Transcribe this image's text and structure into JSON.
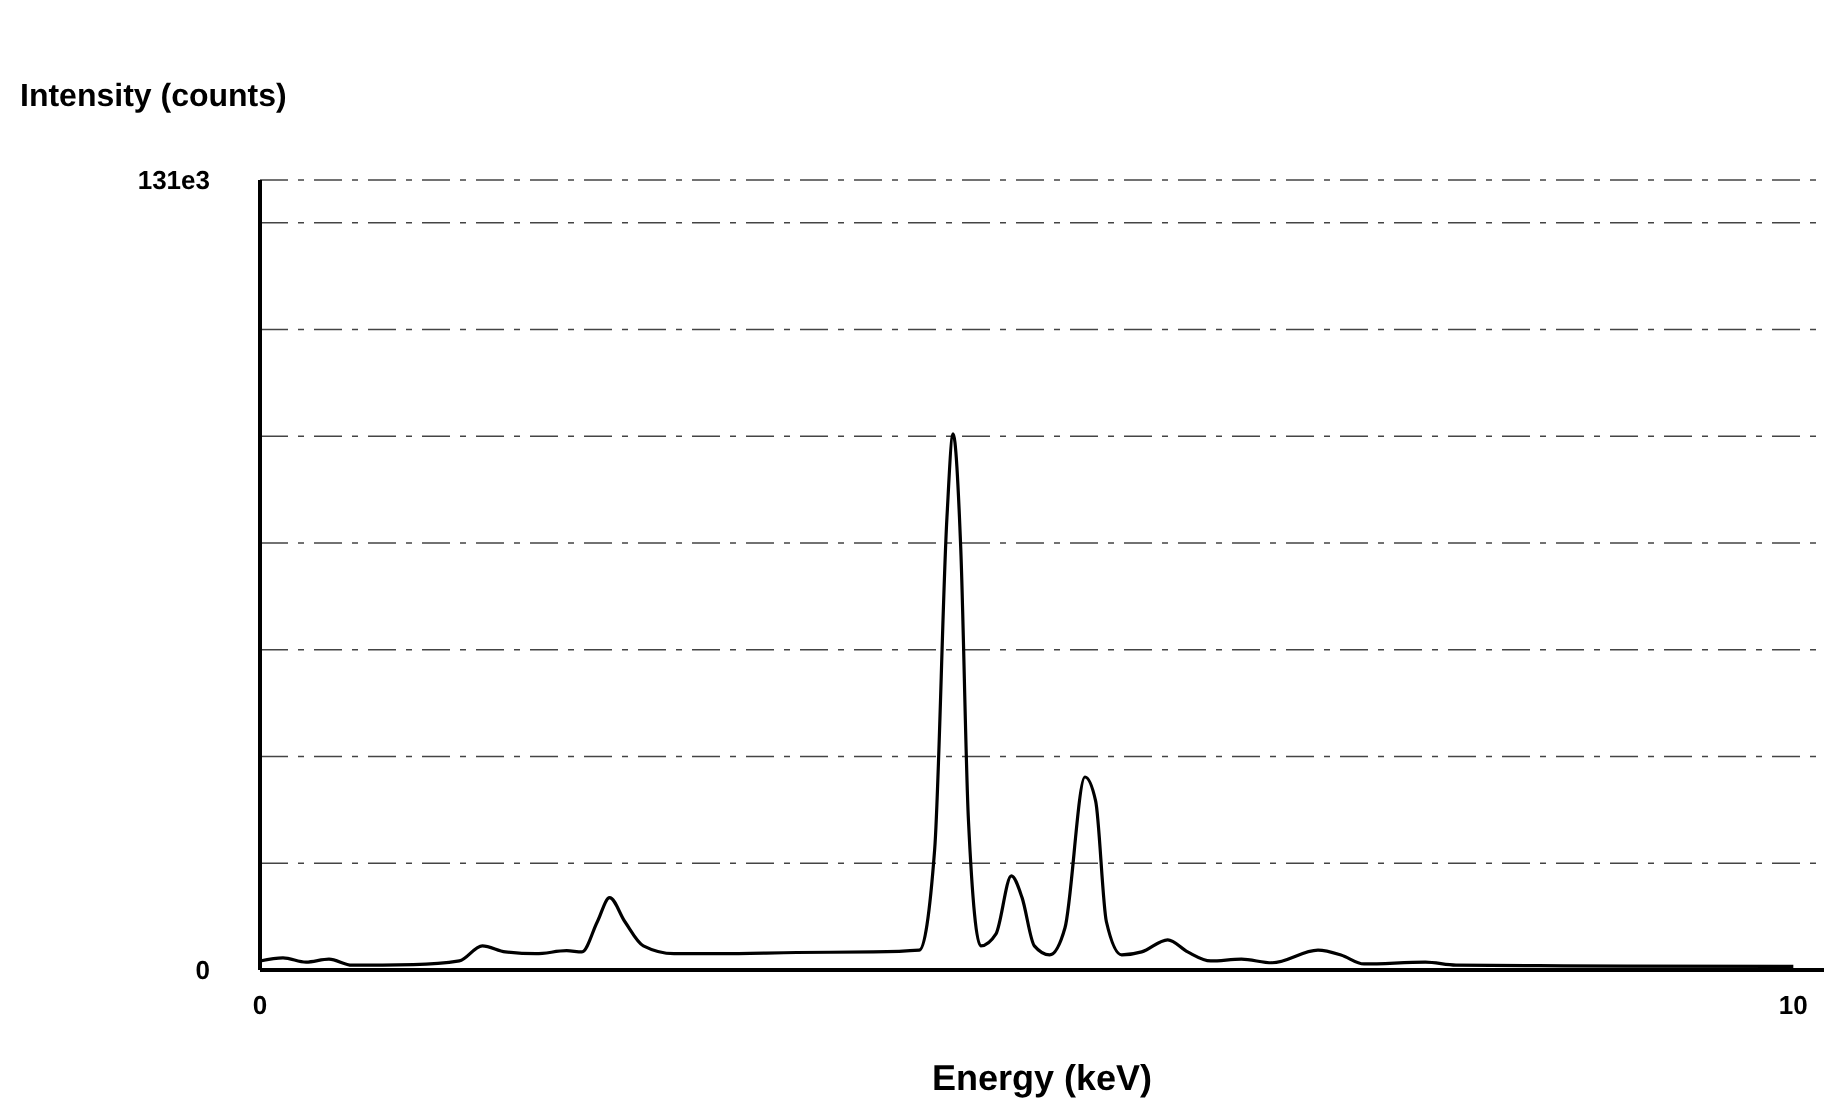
{
  "chart_data": {
    "type": "line",
    "xlabel": "Energy (keV)",
    "ylabel": "Intensity (counts)",
    "xlim": [
      0,
      10.2
    ],
    "xticks": [
      0,
      10
    ],
    "ylim": [
      0,
      131000
    ],
    "yticks": [
      0,
      {
        "value": 17700,
        "label": null
      },
      {
        "value": 35400,
        "label": null
      },
      {
        "value": 53100,
        "label": null
      },
      {
        "value": 70800,
        "label": null
      },
      {
        "value": 88500,
        "label": null
      },
      {
        "value": 106200,
        "label": null
      },
      {
        "value": 123900,
        "label": null
      },
      {
        "value": 131000,
        "label": "131e3"
      }
    ],
    "grid": "y",
    "marker": "none",
    "line_style": "solid",
    "series": [
      {
        "color": "#000000",
        "x": [
          0,
          0.15,
          0.3,
          0.45,
          0.6,
          1.0,
          1.3,
          1.45,
          1.6,
          1.8,
          2.0,
          2.1,
          2.2,
          2.28,
          2.38,
          2.5,
          2.7,
          3.0,
          3.5,
          4.0,
          4.3,
          4.4,
          4.48,
          4.52,
          4.57,
          4.62,
          4.7,
          4.8,
          4.9,
          4.97,
          5.05,
          5.15,
          5.25,
          5.38,
          5.45,
          5.52,
          5.62,
          5.75,
          5.92,
          6.05,
          6.2,
          6.4,
          6.6,
          6.9,
          7.05,
          7.2,
          7.6,
          7.8,
          8.5,
          10
        ],
        "values": [
          1500,
          2000,
          1300,
          1800,
          800,
          900,
          1500,
          4000,
          3000,
          2700,
          3200,
          3000,
          8000,
          12000,
          8000,
          4000,
          2700,
          2700,
          2900,
          3000,
          3300,
          20000,
          75000,
          88900,
          70000,
          25000,
          4000,
          6000,
          15600,
          12000,
          4000,
          2500,
          7000,
          32000,
          28000,
          8000,
          2500,
          3000,
          5000,
          3000,
          1500,
          1800,
          1200,
          3300,
          2500,
          1000,
          1300,
          800,
          700,
          600
        ]
      }
    ]
  }
}
